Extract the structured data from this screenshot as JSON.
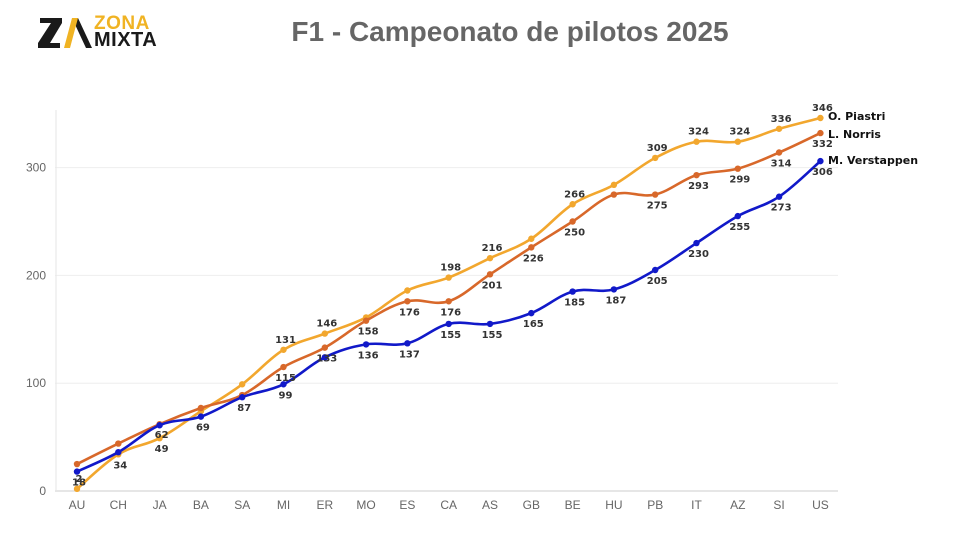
{
  "header": {
    "logo_top": "ZONA",
    "logo_bottom": "MIXTA",
    "title": "F1 - Campeonato de pilotos 2025"
  },
  "chart_data": {
    "type": "line",
    "title": "F1 - Campeonato de pilotos 2025",
    "xlabel": "",
    "ylabel": "",
    "categories": [
      "AU",
      "CH",
      "JA",
      "BA",
      "SA",
      "MI",
      "ER",
      "MO",
      "ES",
      "CA",
      "AS",
      "GB",
      "BE",
      "HU",
      "PB",
      "IT",
      "AZ",
      "SI",
      "US"
    ],
    "yticks": [
      0,
      100,
      200,
      300
    ],
    "ylim": [
      0,
      350
    ],
    "grid": true,
    "series": [
      {
        "name": "O. Piastri",
        "color": "#f2a72e",
        "values": [
          2,
          34,
          49,
          74,
          99,
          131,
          146,
          161,
          186,
          198,
          216,
          234,
          266,
          284,
          309,
          324,
          324,
          336,
          346
        ],
        "labeled": [
          true,
          true,
          true,
          false,
          false,
          true,
          true,
          false,
          false,
          true,
          true,
          false,
          true,
          false,
          true,
          true,
          true,
          true,
          true
        ]
      },
      {
        "name": "L. Norris",
        "color": "#d8682a",
        "values": [
          25,
          44,
          62,
          77,
          89,
          115,
          133,
          158,
          176,
          176,
          201,
          226,
          250,
          275,
          275,
          293,
          299,
          314,
          332
        ],
        "labeled": [
          false,
          false,
          true,
          false,
          false,
          true,
          true,
          true,
          true,
          true,
          true,
          true,
          true,
          false,
          true,
          true,
          true,
          true,
          true
        ]
      },
      {
        "name": "M. Verstappen",
        "color": "#1119c9",
        "values": [
          18,
          36,
          61,
          69,
          87,
          99,
          124,
          136,
          137,
          155,
          155,
          165,
          185,
          187,
          205,
          230,
          255,
          273,
          306
        ],
        "labeled": [
          true,
          false,
          false,
          true,
          true,
          true,
          false,
          true,
          true,
          true,
          true,
          true,
          true,
          true,
          true,
          true,
          true,
          true,
          true
        ]
      }
    ]
  }
}
